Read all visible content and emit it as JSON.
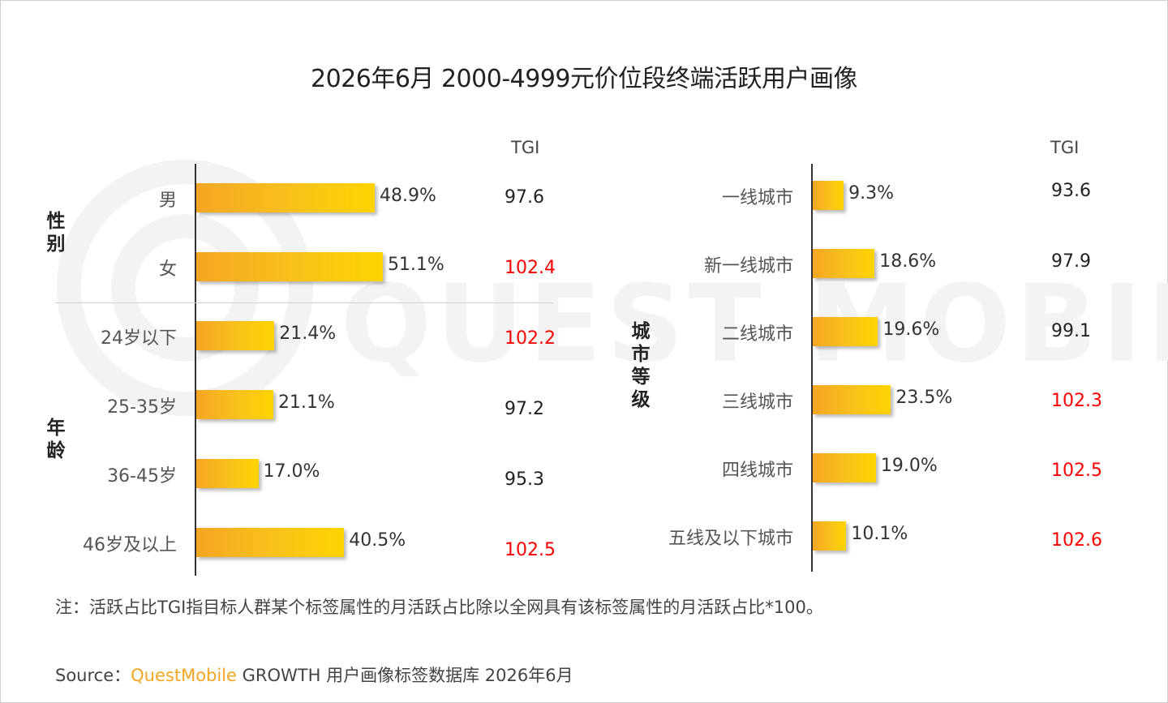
{
  "title": "2026年6月 2000-4999元价位段终端活跃用户画像",
  "watermark": "QUEST MOBILE",
  "colors": {
    "bar_start": "#f5a623",
    "bar_end": "#ffd400",
    "tgi_high": "#ff0000",
    "tgi_normal": "#222222"
  },
  "chart_data": [
    {
      "type": "bar",
      "orientation": "horizontal",
      "tgi_label": "TGI",
      "groups": [
        {
          "name": "性别",
          "categories": [
            "男",
            "女"
          ],
          "values": [
            48.9,
            51.1
          ],
          "value_labels": [
            "48.9%",
            "51.1%"
          ],
          "tgi": [
            "97.6",
            "102.4"
          ]
        },
        {
          "name": "年龄",
          "categories": [
            "24岁以下",
            "25-35岁",
            "36-45岁",
            "46岁及以上"
          ],
          "values": [
            21.4,
            21.1,
            17.0,
            40.5
          ],
          "value_labels": [
            "21.4%",
            "21.1%",
            "17.0%",
            "40.5%"
          ],
          "tgi": [
            "102.2",
            "97.2",
            "95.3",
            "102.5"
          ]
        }
      ]
    },
    {
      "type": "bar",
      "orientation": "horizontal",
      "tgi_label": "TGI",
      "groups": [
        {
          "name": "城市等级",
          "categories": [
            "一线城市",
            "新一线城市",
            "二线城市",
            "三线城市",
            "四线城市",
            "五线及以下城市"
          ],
          "values": [
            9.3,
            18.6,
            19.6,
            23.5,
            19.0,
            10.1
          ],
          "value_labels": [
            "9.3%",
            "18.6%",
            "19.6%",
            "23.5%",
            "19.0%",
            "10.1%"
          ],
          "tgi": [
            "93.6",
            "97.9",
            "99.1",
            "102.3",
            "102.5",
            "102.6"
          ]
        }
      ]
    }
  ],
  "note": "注：活跃占比TGI指目标人群某个标签属性的月活跃占比除以全网具有该标签属性的月活跃占比*100。",
  "source": {
    "label": "Source：",
    "brand": "QuestMobile",
    "text": " GROWTH 用户画像标签数据库 2026年6月"
  }
}
